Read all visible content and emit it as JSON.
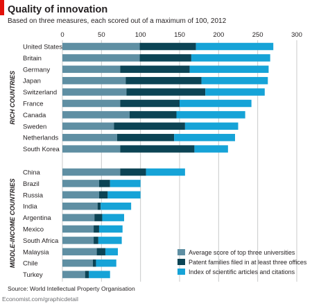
{
  "header": {
    "title": "Quality of innovation",
    "subtitle": "Based on three measures, each scored out of a maximum of 100, 2012"
  },
  "footer": {
    "source": "Source: World Intellectual Property Organisation",
    "credit": "Economist.com/graphicdetail"
  },
  "colors": {
    "universities": "#5f8fa3",
    "patents": "#0c4455",
    "citations": "#16a3d7",
    "brand_mark": "#e3120b",
    "gridline": "#c8c9ca"
  },
  "chart_data": {
    "type": "bar",
    "orientation": "horizontal",
    "stacked": true,
    "title": "Quality of innovation",
    "subtitle": "Based on three measures, each scored out of a maximum of 100, 2012",
    "xlim": [
      0,
      300
    ],
    "xticks": [
      0,
      50,
      100,
      150,
      200,
      250,
      300
    ],
    "grid": true,
    "legend_position": "bottom-right",
    "groups": [
      {
        "label": "RICH COUNTRIES",
        "categories": [
          "United States",
          "Britain",
          "Germany",
          "Japan",
          "Switzerland",
          "France",
          "Canada",
          "Sweden",
          "Netherlands",
          "South Korea"
        ]
      },
      {
        "label": "MIDDLE-INCOME COUNTRIES",
        "categories": [
          "China",
          "Brazil",
          "Russia",
          "India",
          "Argentina",
          "Mexico",
          "South Africa",
          "Malaysia",
          "Chile",
          "Turkey"
        ]
      }
    ],
    "series": [
      {
        "name": "Average score of top three universities",
        "color": "#5f8fa3",
        "values": [
          99,
          99,
          74,
          81,
          82,
          74,
          86,
          66,
          70,
          74,
          74,
          47,
          47,
          45,
          41,
          40,
          40,
          44,
          39,
          29
        ]
      },
      {
        "name": "Patent families filed in at least three offices",
        "color": "#0c4455",
        "values": [
          72,
          66,
          89,
          97,
          101,
          76,
          60,
          91,
          73,
          95,
          33,
          14,
          11,
          4,
          10,
          7,
          6,
          11,
          4,
          5
        ]
      },
      {
        "name": "Index of scientific articles and citations",
        "color": "#16a3d7",
        "values": [
          99,
          101,
          101,
          85,
          76,
          92,
          88,
          68,
          78,
          43,
          50,
          39,
          42,
          39,
          28,
          30,
          30,
          16,
          26,
          27
        ]
      }
    ]
  }
}
